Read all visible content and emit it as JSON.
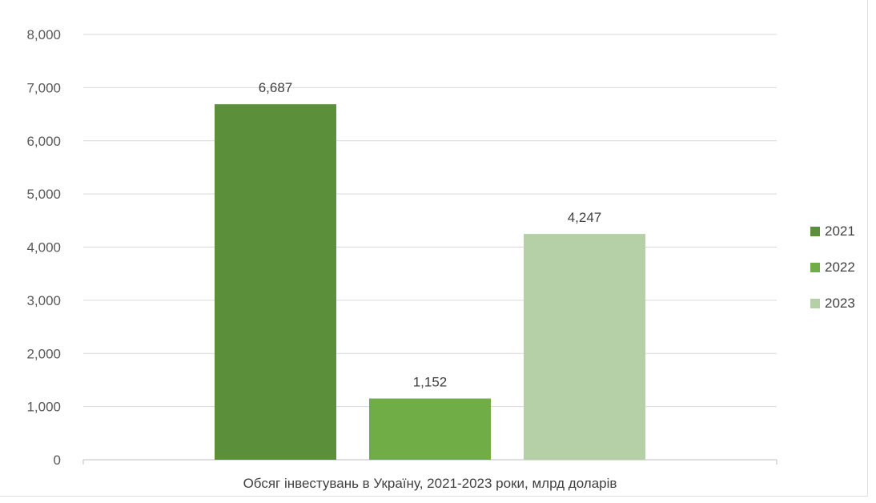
{
  "chart_data": {
    "type": "bar",
    "categories": [
      "Обсяг інвестувань в Україну, 2021-2023 роки, млрд доларів"
    ],
    "series": [
      {
        "name": "2021",
        "values": [
          6.687
        ],
        "color": "#5b8f3a",
        "label": "6,687"
      },
      {
        "name": "2022",
        "values": [
          1.152
        ],
        "color": "#70ad47",
        "label": "1,152"
      },
      {
        "name": "2023",
        "values": [
          4.247
        ],
        "color": "#b5d0a6",
        "label": "4,247"
      }
    ],
    "ylim": [
      0,
      8
    ],
    "yticks": [
      0,
      1,
      2,
      3,
      4,
      5,
      6,
      7,
      8
    ],
    "yticklabels": [
      "0",
      "1,000",
      "2,000",
      "3,000",
      "4,000",
      "5,000",
      "6,000",
      "7,000",
      "8,000"
    ],
    "grid": true,
    "legend_position": "right"
  }
}
